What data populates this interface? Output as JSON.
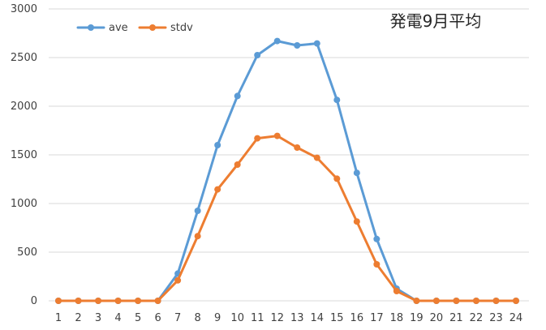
{
  "chart_data": {
    "type": "line",
    "title": "発電9月平均",
    "xlabel": "",
    "ylabel": "",
    "categories": [
      "1",
      "2",
      "3",
      "4",
      "5",
      "6",
      "7",
      "8",
      "9",
      "10",
      "11",
      "12",
      "13",
      "14",
      "15",
      "16",
      "17",
      "18",
      "19",
      "20",
      "21",
      "22",
      "23",
      "24"
    ],
    "ylim": [
      0,
      3000
    ],
    "yticks": [
      0,
      500,
      1000,
      1500,
      2000,
      2500,
      3000
    ],
    "grid": true,
    "legend_position": "top-left",
    "series": [
      {
        "name": "ave",
        "color": "#5B9BD5",
        "values": [
          0,
          0,
          0,
          0,
          0,
          0,
          280,
          925,
          1600,
          2105,
          2525,
          2670,
          2625,
          2645,
          2065,
          1315,
          635,
          125,
          0,
          0,
          0,
          0,
          0,
          0
        ]
      },
      {
        "name": "stdv",
        "color": "#ED7D31",
        "values": [
          0,
          0,
          0,
          0,
          0,
          0,
          210,
          665,
          1145,
          1400,
          1670,
          1695,
          1575,
          1470,
          1255,
          815,
          375,
          100,
          0,
          0,
          0,
          0,
          0,
          0
        ]
      }
    ]
  }
}
